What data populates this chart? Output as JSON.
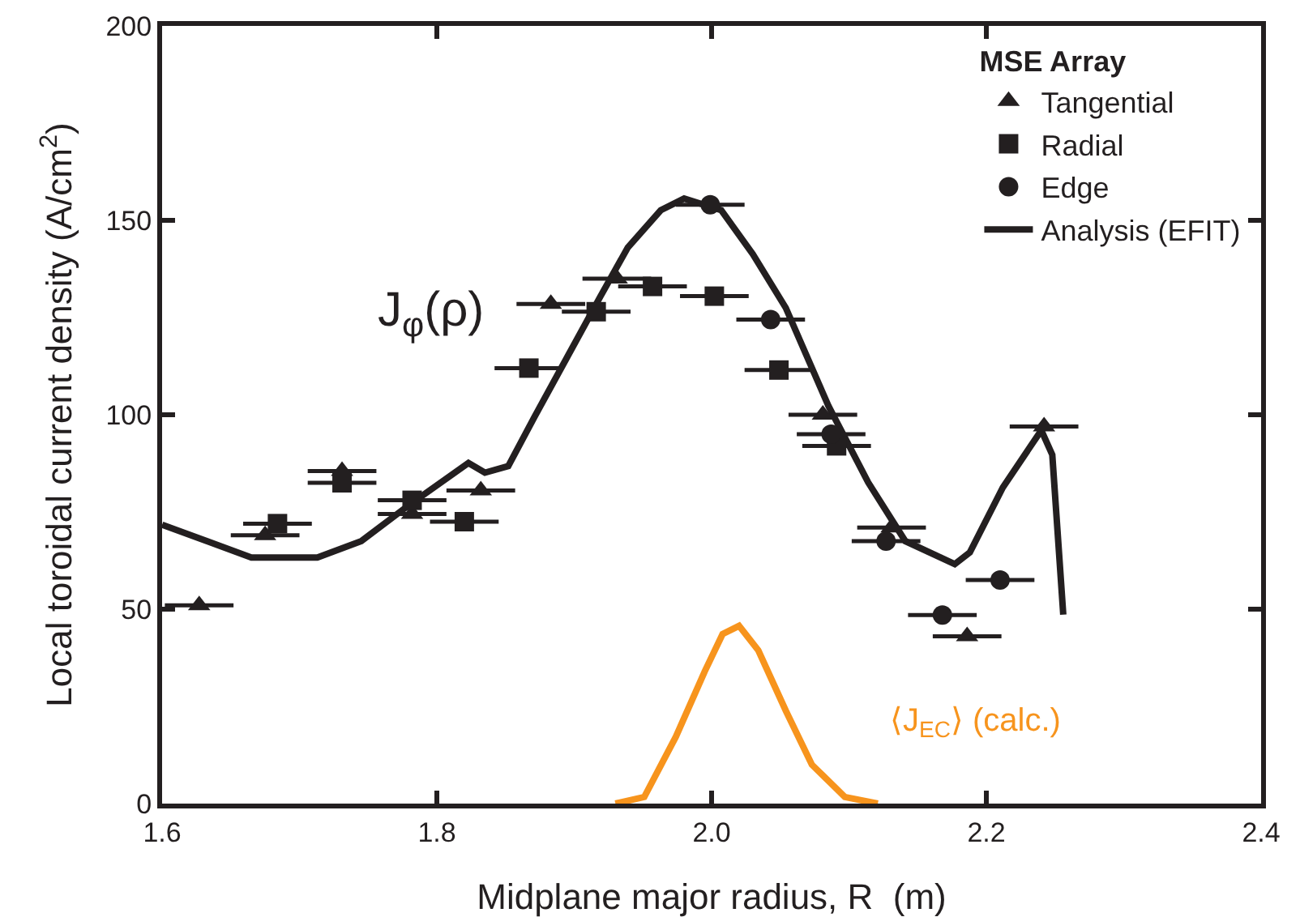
{
  "chart_data": {
    "type": "scatter",
    "xlabel": "Midplane major radius, R  (m)",
    "ylabel": "Local toroidal current density (A/cm$^{2}$)",
    "legend_title": "MSE Array",
    "legend": "top right",
    "grid": false,
    "xlim": [
      1.6,
      2.4
    ],
    "xticks": [
      1.6,
      1.8,
      {
        "value": 2,
        "label": "2.0"
      },
      2.2,
      2.4
    ],
    "ylim": [
      0,
      200
    ],
    "yticks": [
      0,
      50,
      100,
      150,
      200
    ],
    "series": [
      {
        "name": "Tangential",
        "marker": "triangle",
        "color": "#231f20",
        "x": [
          1.627,
          1.675,
          1.731,
          1.782,
          1.832,
          1.883,
          1.931,
          2.081,
          2.131,
          2.186,
          2.242
        ],
        "values": [
          51,
          69,
          85.5,
          74.5,
          80.5,
          128.5,
          135,
          100,
          71,
          43,
          97
        ],
        "xerrors": [
          0.025,
          0.025,
          0.025,
          0.025,
          0.025,
          0.025,
          0.025,
          0.025,
          0.025,
          0.025,
          0.025
        ]
      },
      {
        "name": "Radial",
        "marker": "square",
        "color": "#231f20",
        "x": [
          1.684,
          1.731,
          1.782,
          1.82,
          1.867,
          1.916,
          1.957,
          2.002,
          2.049,
          2.091
        ],
        "values": [
          72,
          82.5,
          78,
          72.5,
          112,
          126.5,
          133,
          130.5,
          111.5,
          92
        ],
        "xerrors": [
          0.025,
          0.025,
          0.025,
          0.025,
          0.025,
          0.025,
          0.025,
          0.025,
          0.025,
          0.025
        ]
      },
      {
        "name": "Edge",
        "marker": "circle",
        "color": "#231f20",
        "x": [
          1.999,
          2.043,
          2.087,
          2.127,
          2.168,
          2.21
        ],
        "values": [
          154,
          124.5,
          95,
          67.5,
          48.5,
          57.5
        ],
        "xerrors": [
          0.025,
          0.025,
          0.025,
          0.025,
          0.025,
          0.025
        ]
      },
      {
        "name": "Analysis (EFIT)",
        "type": "line",
        "marker": "none",
        "color": "#231f20",
        "x": [
          1.6,
          1.665,
          1.713,
          1.745,
          1.781,
          1.823,
          1.835,
          1.852,
          1.871,
          1.895,
          1.919,
          1.939,
          1.963,
          1.98,
          2.007,
          2.03,
          2.054,
          2.085,
          2.114,
          2.141,
          2.177,
          2.188,
          2.212,
          2.24,
          2.248,
          2.256
        ],
        "values": [
          71.7,
          63.3,
          63.3,
          67.5,
          77.1,
          87.6,
          85.1,
          86.8,
          99.4,
          114.9,
          130.4,
          143,
          152.6,
          155.6,
          152.6,
          141.3,
          127.5,
          102.3,
          82.6,
          67.5,
          61.6,
          64.6,
          81.3,
          96,
          89.7,
          48.6
        ]
      },
      {
        "type": "line",
        "marker": "none",
        "color": "#f7941d",
        "x": [
          1.93,
          1.951,
          1.974,
          1.995,
          2.008,
          2.02,
          2.034,
          2.054,
          2.073,
          2.097,
          2.121
        ],
        "values": [
          0,
          1.7,
          17.2,
          34,
          43.6,
          45.7,
          39.4,
          23.9,
          10,
          1.7,
          0
        ]
      }
    ],
    "annotations": [
      "J$_{φ}$(ρ)",
      "⟨J$_{EC}$⟩ (calc.)"
    ]
  }
}
